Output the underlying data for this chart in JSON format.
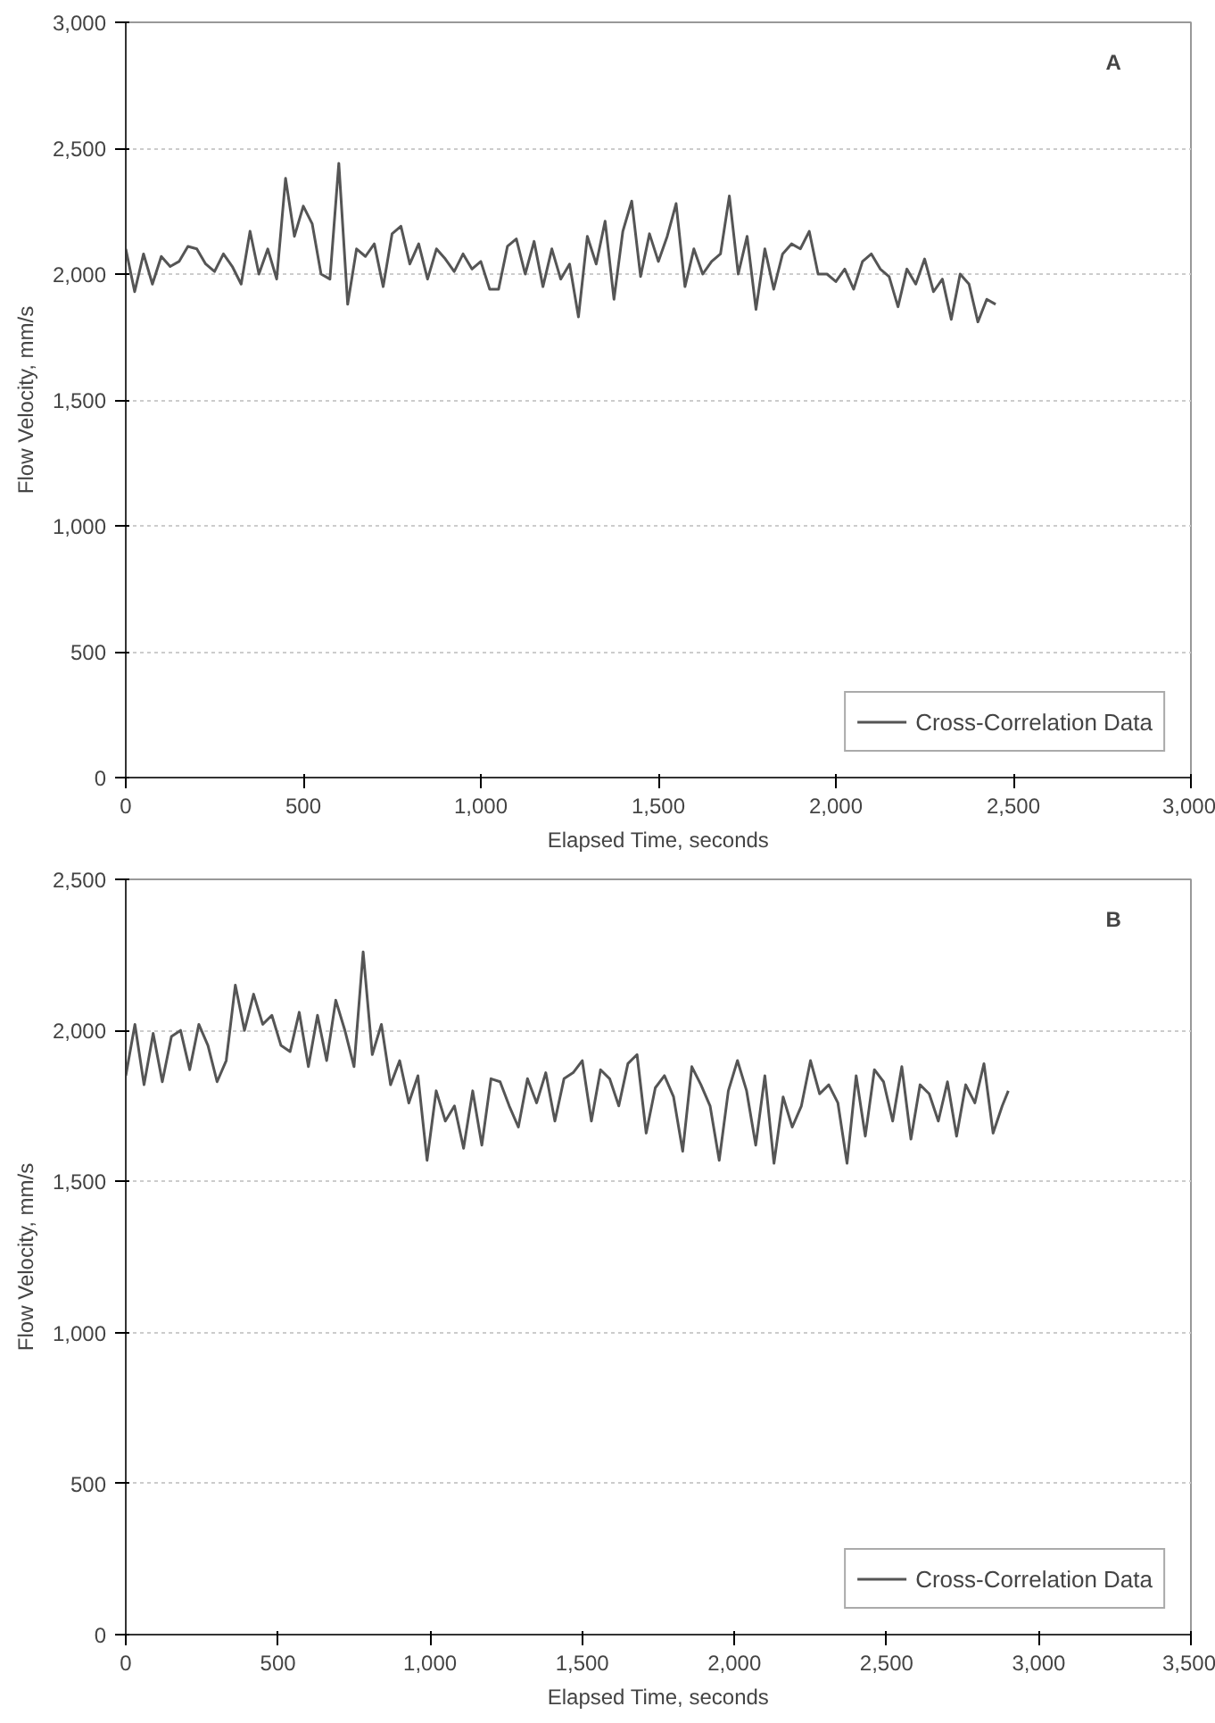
{
  "chart_data": [
    {
      "type": "line",
      "xlabel": "Elapsed Time, seconds",
      "ylabel": "Flow Velocity, mm/s",
      "annotations": [
        "A"
      ],
      "xlim": [
        0,
        3000
      ],
      "ylim": [
        0,
        3000
      ],
      "xticks": [
        {
          "value": 0,
          "label": "0"
        },
        {
          "value": 500,
          "label": "500"
        },
        {
          "value": 1000,
          "label": "1,000"
        },
        {
          "value": 1500,
          "label": "1,500"
        },
        {
          "value": 2000,
          "label": "2,000"
        },
        {
          "value": 2500,
          "label": "2,500"
        },
        {
          "value": 3000,
          "label": "3,000"
        }
      ],
      "yticks": [
        {
          "value": 0,
          "label": "0"
        },
        {
          "value": 500,
          "label": "500"
        },
        {
          "value": 1000,
          "label": "1,000"
        },
        {
          "value": 1500,
          "label": "1,500"
        },
        {
          "value": 2000,
          "label": "2,000"
        },
        {
          "value": 2500,
          "label": "2,500"
        },
        {
          "value": 3000,
          "label": "3,000"
        }
      ],
      "grid": "y",
      "legend": "bottom right",
      "marker": "none",
      "line_style": "solid",
      "x": [
        0,
        25,
        50,
        75,
        100,
        125,
        150,
        175,
        200,
        225,
        250,
        275,
        300,
        325,
        350,
        375,
        400,
        425,
        450,
        475,
        500,
        525,
        550,
        575,
        600,
        625,
        650,
        675,
        700,
        725,
        750,
        775,
        800,
        825,
        850,
        875,
        900,
        925,
        950,
        975,
        1000,
        1025,
        1050,
        1075,
        1100,
        1125,
        1150,
        1175,
        1200,
        1225,
        1250,
        1275,
        1300,
        1325,
        1350,
        1375,
        1400,
        1425,
        1450,
        1475,
        1500,
        1525,
        1550,
        1575,
        1600,
        1625,
        1650,
        1675,
        1700,
        1725,
        1750,
        1775,
        1800,
        1825,
        1850,
        1875,
        1900,
        1925,
        1950,
        1975,
        2000,
        2025,
        2050,
        2075,
        2100,
        2125,
        2150,
        2175,
        2200,
        2225,
        2250,
        2275,
        2300,
        2325,
        2350,
        2375,
        2400,
        2425,
        2450
      ],
      "series": [
        {
          "name": "Cross-Correlation Data",
          "color": "#555555",
          "values": [
            2100,
            1930,
            2080,
            1960,
            2070,
            2030,
            2050,
            2110,
            2100,
            2040,
            2010,
            2080,
            2030,
            1960,
            2170,
            2000,
            2100,
            1980,
            2380,
            2150,
            2270,
            2200,
            2000,
            1980,
            2440,
            1880,
            2100,
            2070,
            2120,
            1950,
            2160,
            2190,
            2040,
            2120,
            1980,
            2100,
            2060,
            2010,
            2080,
            2020,
            2050,
            1940,
            1940,
            2110,
            2140,
            2000,
            2130,
            1950,
            2100,
            1980,
            2040,
            1830,
            2150,
            2040,
            2210,
            1900,
            2170,
            2290,
            1990,
            2160,
            2050,
            2150,
            2280,
            1950,
            2100,
            2000,
            2050,
            2080,
            2310,
            2000,
            2150,
            1860,
            2100,
            1940,
            2080,
            2120,
            2100,
            2170,
            2000,
            2000,
            1970,
            2020,
            1940,
            2050,
            2080,
            2020,
            1990,
            1870,
            2020,
            1960,
            2060,
            1930,
            1980,
            1820,
            2000,
            1960,
            1810,
            1900,
            1880
          ]
        }
      ]
    },
    {
      "type": "line",
      "xlabel": "Elapsed Time, seconds",
      "ylabel": "Flow Velocity, mm/s",
      "annotations": [
        "B"
      ],
      "xlim": [
        0,
        3500
      ],
      "ylim": [
        0,
        2500
      ],
      "xticks": [
        {
          "value": 0,
          "label": "0"
        },
        {
          "value": 500,
          "label": "500"
        },
        {
          "value": 1000,
          "label": "1,000"
        },
        {
          "value": 1500,
          "label": "1,500"
        },
        {
          "value": 2000,
          "label": "2,000"
        },
        {
          "value": 2500,
          "label": "2,500"
        },
        {
          "value": 3000,
          "label": "3,000"
        },
        {
          "value": 3500,
          "label": "3,500"
        }
      ],
      "yticks": [
        {
          "value": 0,
          "label": "0"
        },
        {
          "value": 500,
          "label": "500"
        },
        {
          "value": 1000,
          "label": "1,000"
        },
        {
          "value": 1500,
          "label": "1,500"
        },
        {
          "value": 2000,
          "label": "2,000"
        },
        {
          "value": 2500,
          "label": "2,500"
        }
      ],
      "grid": "y",
      "legend": "bottom right",
      "marker": "none",
      "line_style": "solid",
      "x": [
        0,
        30,
        60,
        90,
        120,
        150,
        180,
        210,
        240,
        270,
        300,
        330,
        360,
        390,
        420,
        450,
        480,
        510,
        540,
        570,
        600,
        630,
        660,
        690,
        720,
        750,
        780,
        810,
        840,
        870,
        900,
        930,
        960,
        990,
        1020,
        1050,
        1080,
        1110,
        1140,
        1170,
        1200,
        1230,
        1260,
        1290,
        1320,
        1350,
        1380,
        1410,
        1440,
        1470,
        1500,
        1530,
        1560,
        1590,
        1620,
        1650,
        1680,
        1710,
        1740,
        1770,
        1800,
        1830,
        1860,
        1890,
        1920,
        1950,
        1980,
        2010,
        2040,
        2070,
        2100,
        2130,
        2160,
        2190,
        2220,
        2250,
        2280,
        2310,
        2340,
        2370,
        2400,
        2430,
        2460,
        2490,
        2520,
        2550,
        2580,
        2610,
        2640,
        2670,
        2700,
        2730,
        2760,
        2790,
        2820,
        2850,
        2880,
        2900
      ],
      "series": [
        {
          "name": "Cross-Correlation Data",
          "color": "#555555",
          "values": [
            1850,
            2020,
            1820,
            1990,
            1830,
            1980,
            2000,
            1870,
            2020,
            1950,
            1830,
            1900,
            2150,
            2000,
            2120,
            2020,
            2050,
            1950,
            1930,
            2060,
            1880,
            2050,
            1900,
            2100,
            2000,
            1880,
            2260,
            1920,
            2020,
            1820,
            1900,
            1760,
            1850,
            1570,
            1800,
            1700,
            1750,
            1610,
            1800,
            1620,
            1840,
            1830,
            1750,
            1680,
            1840,
            1760,
            1860,
            1700,
            1840,
            1860,
            1900,
            1700,
            1870,
            1840,
            1750,
            1890,
            1920,
            1660,
            1810,
            1850,
            1780,
            1600,
            1880,
            1820,
            1750,
            1570,
            1800,
            1900,
            1800,
            1620,
            1850,
            1560,
            1780,
            1680,
            1750,
            1900,
            1790,
            1820,
            1760,
            1560,
            1850,
            1650,
            1870,
            1830,
            1700,
            1880,
            1640,
            1820,
            1790,
            1700,
            1830,
            1650,
            1820,
            1760,
            1890,
            1660,
            1750,
            1800
          ]
        }
      ]
    }
  ]
}
